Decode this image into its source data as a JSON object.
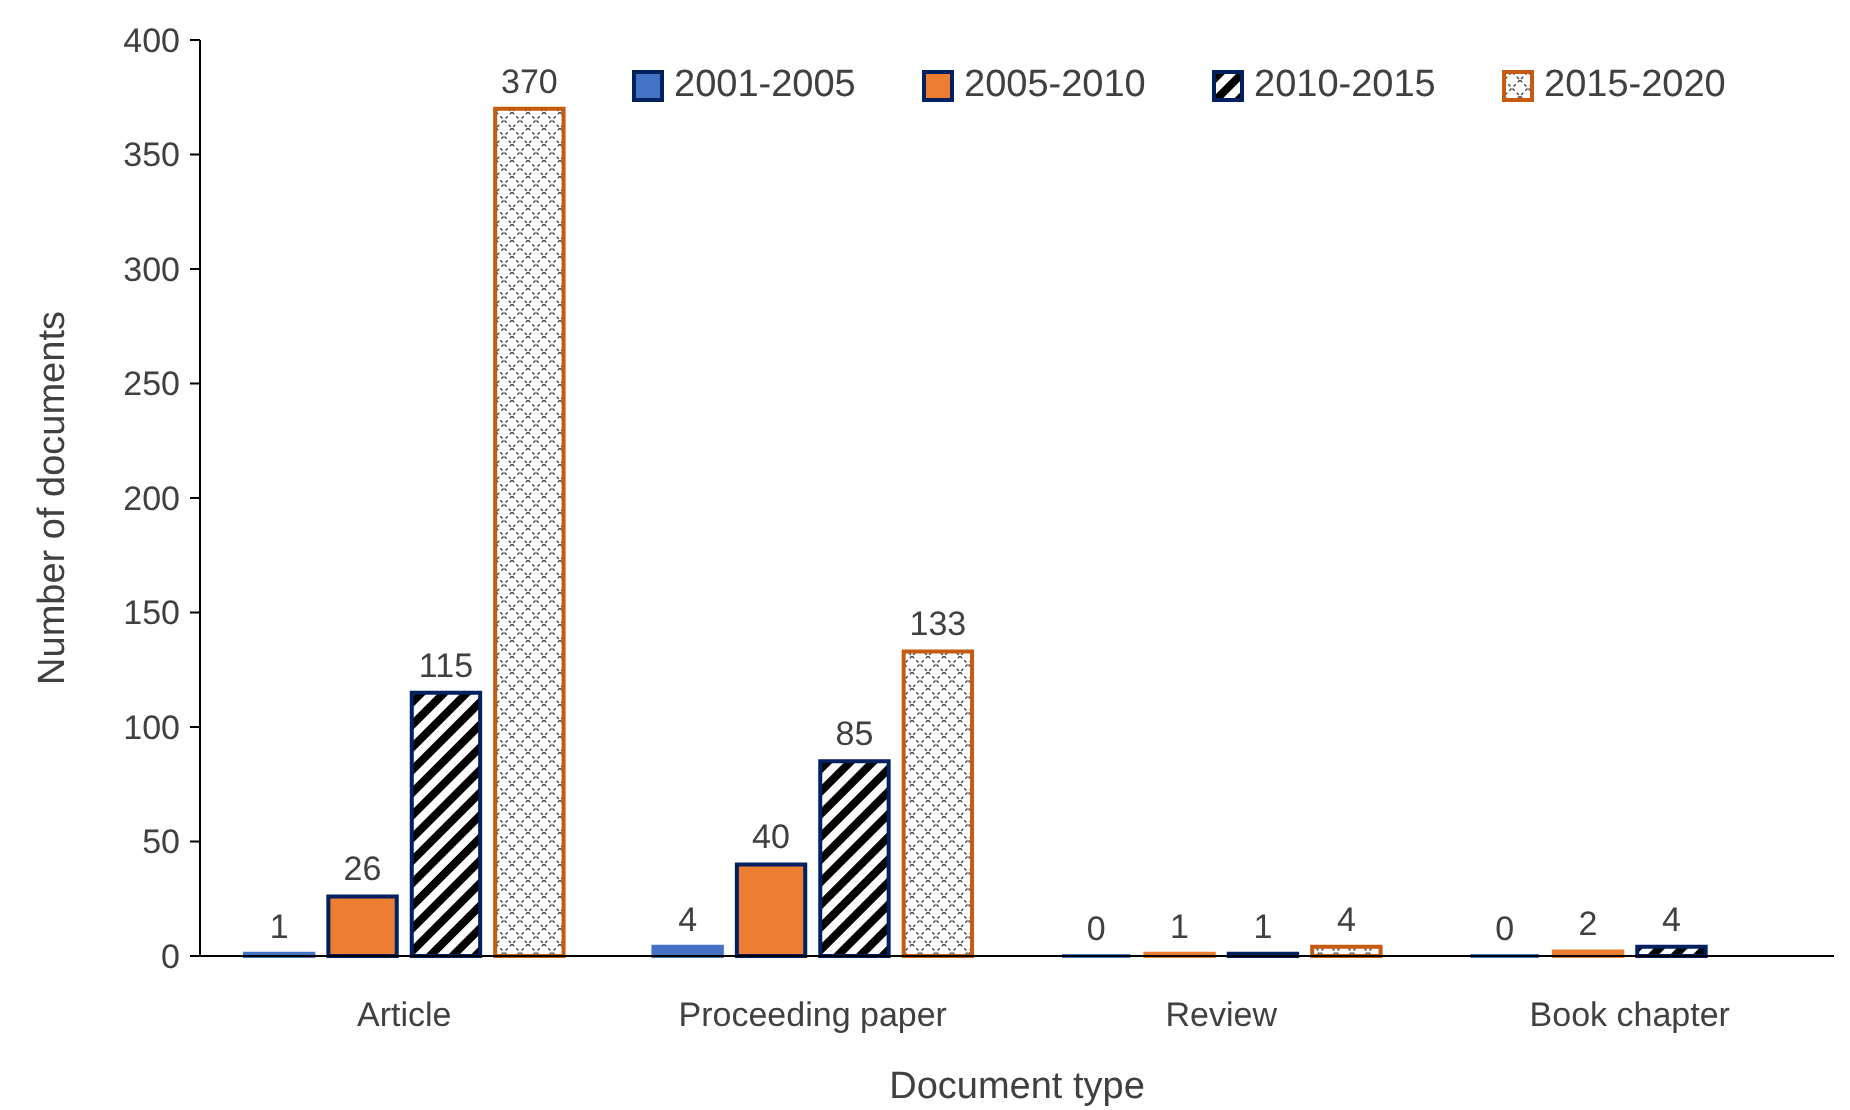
{
  "chart_data": {
    "type": "bar",
    "xlabel": "Document type",
    "ylabel": "Number of documents",
    "categories": [
      "Article",
      "Proceeding paper",
      "Review",
      "Book chapter"
    ],
    "series": [
      {
        "name": "2001-2005",
        "color": "#4472c4",
        "values": [
          1,
          4,
          0,
          0
        ]
      },
      {
        "name": "2005-2010",
        "color": "#ed7d31",
        "values": [
          26,
          40,
          1,
          2
        ]
      },
      {
        "name": "2010-2015",
        "color": "#002060",
        "values": [
          115,
          85,
          1,
          4
        ]
      },
      {
        "name": "2015-2020",
        "color": "#c55a11",
        "values": [
          370,
          133,
          4,
          null
        ]
      }
    ],
    "ylim": [
      0,
      400
    ],
    "yticks": [
      0,
      50,
      100,
      150,
      200,
      250,
      300,
      350,
      400
    ],
    "data_labels": true,
    "legend": "top right",
    "grid": false
  }
}
